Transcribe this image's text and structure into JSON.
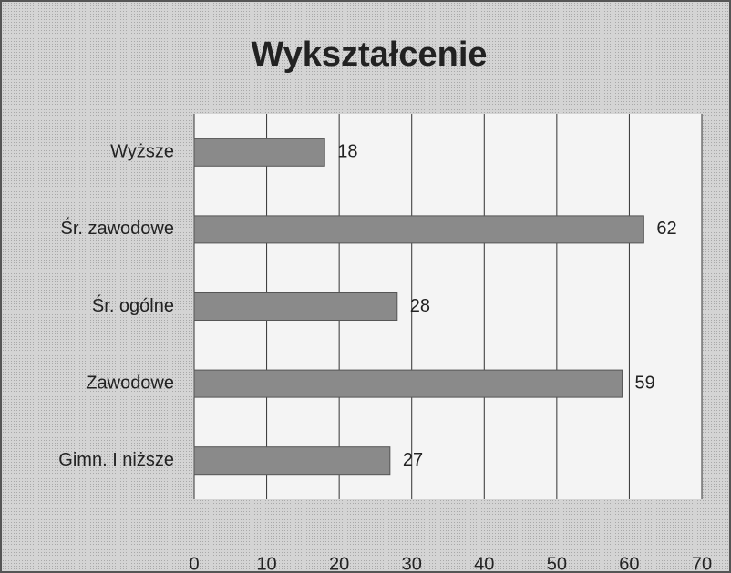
{
  "chart_data": {
    "type": "bar",
    "orientation": "horizontal",
    "title": "Wykształcenie",
    "categories": [
      "Wyższe",
      "Śr. zawodowe",
      "Śr. ogólne",
      "Zawodowe",
      "Gimn. I niższe"
    ],
    "values": [
      18,
      62,
      28,
      59,
      27
    ],
    "color": "#8a8a8a",
    "xlim": [
      0,
      70
    ],
    "xticks": [
      0,
      10,
      20,
      30,
      40,
      50,
      60,
      70
    ],
    "grid": true
  }
}
